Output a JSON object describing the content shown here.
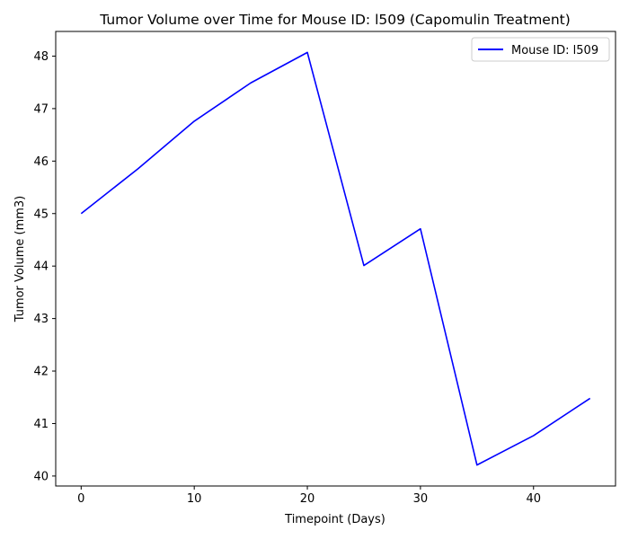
{
  "chart_data": {
    "type": "line",
    "title": "Tumor Volume over Time for Mouse ID: l509 (Capomulin Treatment)",
    "xlabel": "Timepoint (Days)",
    "ylabel": "Tumor Volume (mm3)",
    "x": [
      0,
      5,
      10,
      15,
      20,
      25,
      30,
      35,
      40,
      45
    ],
    "series": [
      {
        "name": "Mouse ID: l509",
        "color": "#0000ff",
        "values": [
          45.0,
          45.85,
          46.76,
          47.49,
          48.07,
          44.01,
          44.71,
          40.21,
          40.77,
          41.48
        ]
      }
    ],
    "xticks": [
      0,
      10,
      20,
      30,
      40
    ],
    "yticks": [
      40,
      41,
      42,
      43,
      44,
      45,
      46,
      47,
      48
    ],
    "xlim": [
      -2.25,
      47.25
    ],
    "ylim": [
      39.81,
      48.47
    ],
    "grid": false,
    "legend_position": "upper right"
  }
}
